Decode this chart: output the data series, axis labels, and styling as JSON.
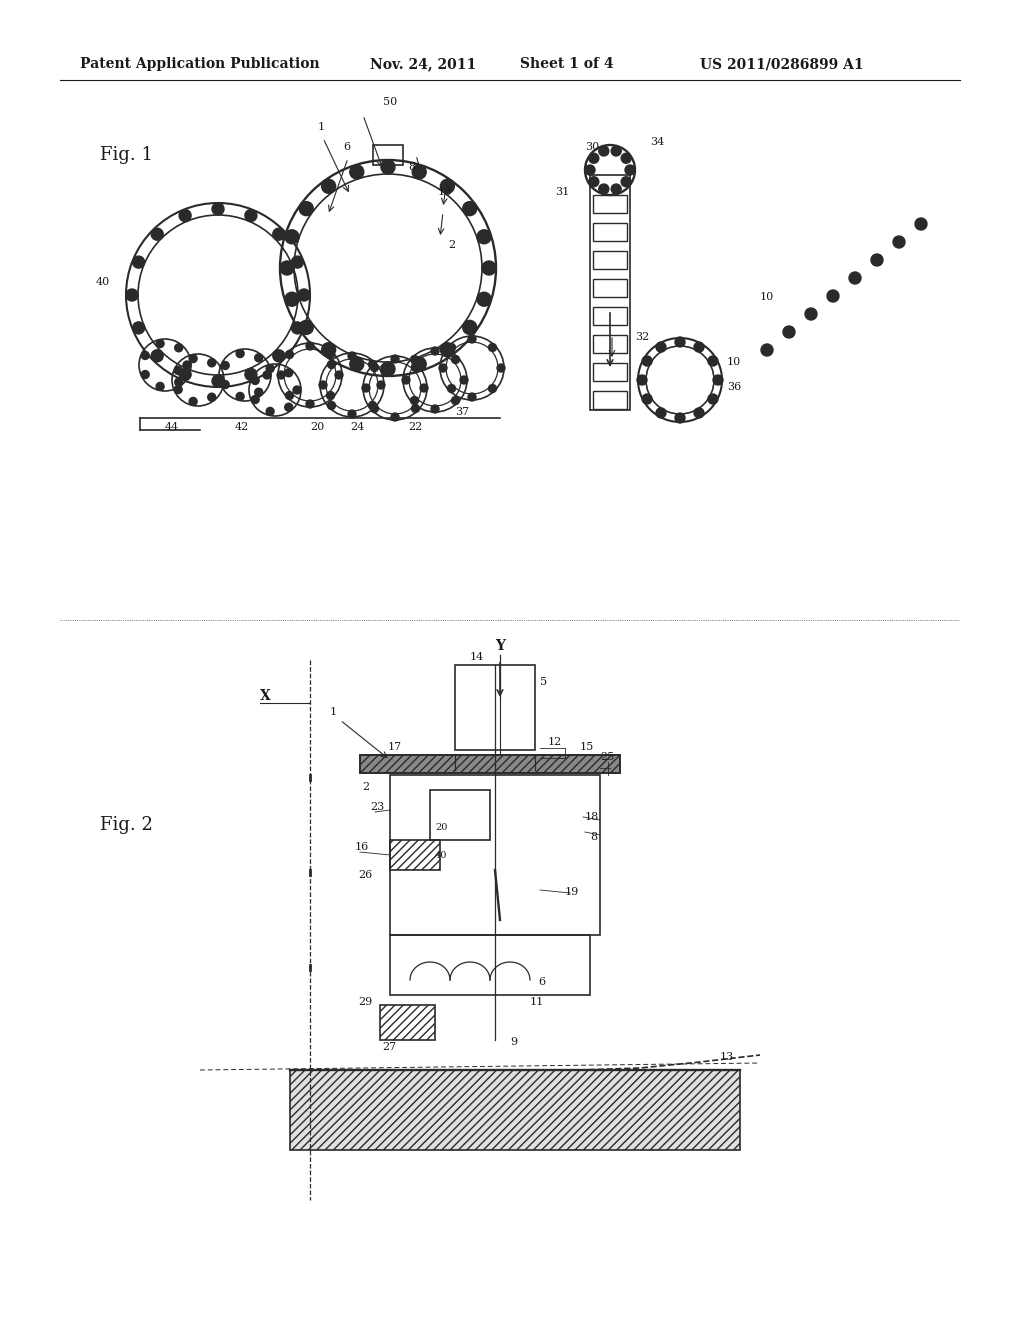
{
  "bg_color": "#ffffff",
  "header_text": "Patent Application Publication",
  "header_date": "Nov. 24, 2011",
  "header_sheet": "Sheet 1 of 4",
  "header_patent": "US 2011/0286899 A1",
  "fig1_label": "Fig. 1",
  "fig2_label": "Fig. 2",
  "title_font": 11,
  "label_font": 9
}
